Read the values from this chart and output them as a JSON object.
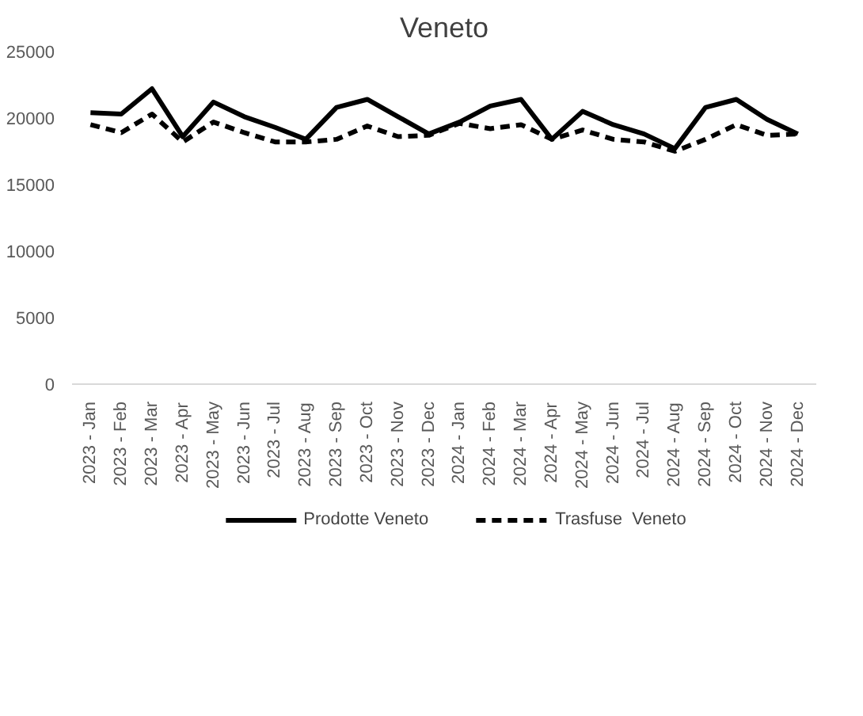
{
  "chart_data": {
    "type": "line",
    "title": "Veneto",
    "categories": [
      "2023 - Jan",
      "2023 - Feb",
      "2023 - Mar",
      "2023 - Apr",
      "2023 - May",
      "2023 - Jun",
      "2023 - Jul",
      "2023 - Aug",
      "2023 - Sep",
      "2023 - Oct",
      "2023 - Nov",
      "2023 - Dec",
      "2024 - Jan",
      "2024 - Feb",
      "2024 - Mar",
      "2024 - Apr",
      "2024 - May",
      "2024 - Jun",
      "2024 - Jul",
      "2024 - Aug",
      "2024 - Sep",
      "2024 - Oct",
      "2024 - Nov",
      "2024 - Dec"
    ],
    "series": [
      {
        "name": "Prodotte Veneto",
        "color": "#000000",
        "line_style": "solid",
        "values": [
          20400,
          20300,
          22200,
          18600,
          21200,
          20100,
          19300,
          18400,
          20800,
          21400,
          20100,
          18800,
          19700,
          20900,
          21400,
          18400,
          20500,
          19500,
          18800,
          17700,
          20800,
          21400,
          19900,
          18800
        ]
      },
      {
        "name": "Trasfuse  Veneto",
        "color": "#000000",
        "line_style": "dashed",
        "values": [
          19500,
          18900,
          20300,
          18200,
          19700,
          18900,
          18200,
          18200,
          18400,
          19400,
          18600,
          18700,
          19600,
          19200,
          19500,
          18400,
          19100,
          18400,
          18200,
          17500,
          18400,
          19500,
          18700,
          18800
        ]
      }
    ],
    "ylim": [
      0,
      25000
    ],
    "yticks": [
      0,
      5000,
      10000,
      15000,
      20000,
      25000
    ],
    "grid": false,
    "legend": "bottom"
  }
}
